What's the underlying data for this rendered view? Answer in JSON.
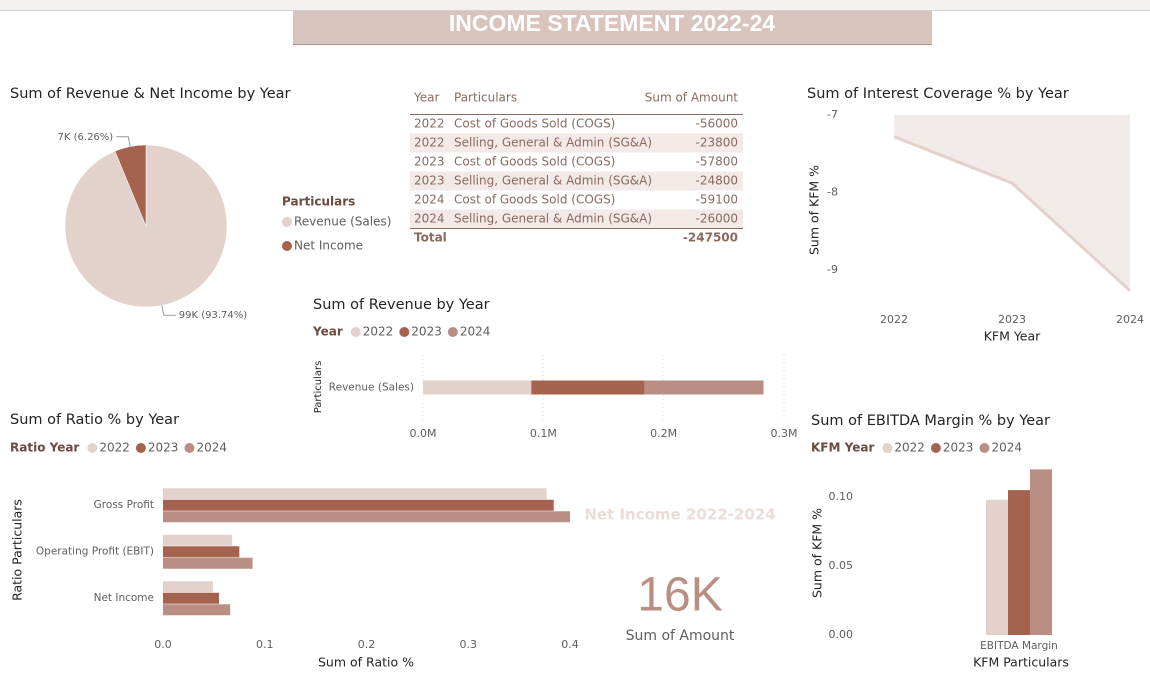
{
  "header": {
    "title": "INCOME STATEMENT 2022-24"
  },
  "table": {
    "columns": [
      "Year",
      "Particulars",
      "Sum of Amount"
    ],
    "rows": [
      [
        2022,
        "Cost of Goods Sold (COGS)",
        -56000
      ],
      [
        2022,
        "Selling, General & Admin (SG&A)",
        -23800
      ],
      [
        2023,
        "Cost of Goods Sold (COGS)",
        -57800
      ],
      [
        2023,
        "Selling, General & Admin (SG&A)",
        -24800
      ],
      [
        2024,
        "Cost of Goods Sold (COGS)",
        -59100
      ],
      [
        2024,
        "Selling, General & Admin (SG&A)",
        -26000
      ]
    ],
    "total": [
      "Total",
      -247500
    ]
  },
  "card": {
    "title": "Net Income 2022-2024",
    "value": "16K",
    "caption": "Sum of Amount"
  },
  "chart_data": [
    {
      "type": "pie",
      "title": "Sum of Revenue & Net Income by Year",
      "legend_title": "Particulars",
      "categories": [
        "Revenue (Sales)",
        "Net Income"
      ],
      "values": [
        93.74,
        6.26
      ],
      "value_labels": [
        "99K (93.74%)",
        "7K (6.26%)"
      ],
      "colors": [
        "#e3d1cc",
        "#a5624f"
      ]
    },
    {
      "type": "area",
      "title": "Sum of Interest Coverage % by Year",
      "x": [
        2022,
        2023,
        2024
      ],
      "values": [
        -7.28,
        -7.88,
        -9.27
      ],
      "xlim": [
        2022,
        2024
      ],
      "xticks": [
        2022,
        2023,
        2024
      ],
      "ylim": [
        -9.3,
        -7
      ],
      "yticks": [
        -9,
        -8,
        -7
      ],
      "xlabel": "KFM Year",
      "ylabel": "Sum of KFM %",
      "color": "#e3d1cc"
    },
    {
      "type": "bar",
      "orientation": "horizontal",
      "stacked": true,
      "title": "Sum of Revenue by Year",
      "legend_title": "Year",
      "categories": [
        "Revenue (Sales)"
      ],
      "series": [
        {
          "name": "2022",
          "color": "#e3d1cc",
          "values": [
            90000
          ]
        },
        {
          "name": "2023",
          "color": "#a5624f",
          "values": [
            94000
          ]
        },
        {
          "name": "2024",
          "color": "#b98e83",
          "values": [
            99000
          ]
        }
      ],
      "xlim": [
        0,
        300000
      ],
      "xticks": [
        {
          "value": 0,
          "label": "0.0M"
        },
        {
          "value": 100000,
          "label": "0.1M"
        },
        {
          "value": 200000,
          "label": "0.2M"
        },
        {
          "value": 300000,
          "label": "0.3M"
        }
      ],
      "ylabel": "Particulars",
      "grid": true
    },
    {
      "type": "bar",
      "orientation": "horizontal",
      "stacked": false,
      "title": "Sum of Ratio % by Year",
      "legend_title": "Ratio Year",
      "categories": [
        "Gross Profit",
        "Operating Profit (EBIT)",
        "Net Income"
      ],
      "series": [
        {
          "name": "2022",
          "color": "#e3d1cc",
          "values": [
            0.377,
            0.068,
            0.049
          ]
        },
        {
          "name": "2023",
          "color": "#a5624f",
          "values": [
            0.384,
            0.075,
            0.055
          ]
        },
        {
          "name": "2024",
          "color": "#b98e83",
          "values": [
            0.4,
            0.088,
            0.066
          ]
        }
      ],
      "xlim": [
        0,
        0.4
      ],
      "xticks": [
        {
          "value": 0,
          "label": "0.0"
        },
        0.1,
        0.2,
        0.3,
        0.4
      ],
      "xlabel": "Sum of Ratio %",
      "ylabel": "Ratio Particulars",
      "grid": false
    },
    {
      "type": "bar",
      "orientation": "vertical",
      "stacked": false,
      "title": "Sum of EBITDA Margin % by Year",
      "legend_title": "KFM Year",
      "categories": [
        "EBITDA Margin"
      ],
      "series": [
        {
          "name": "2022",
          "color": "#e3d1cc",
          "values": [
            0.098
          ]
        },
        {
          "name": "2023",
          "color": "#a5624f",
          "values": [
            0.105
          ]
        },
        {
          "name": "2024",
          "color": "#b98e83",
          "values": [
            0.12
          ]
        }
      ],
      "ylim": [
        0,
        0.125
      ],
      "yticks": [
        {
          "value": 0,
          "label": "0.00"
        },
        0.05,
        {
          "value": 0.1,
          "label": "0.10"
        }
      ],
      "xlabel": "KFM Particulars",
      "ylabel": "Sum of KFM %",
      "grid": false
    }
  ]
}
